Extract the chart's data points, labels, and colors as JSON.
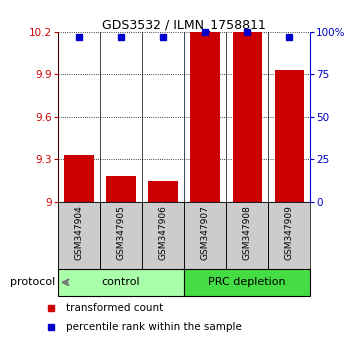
{
  "title": "GDS3532 / ILMN_1758811",
  "samples": [
    "GSM347904",
    "GSM347905",
    "GSM347906",
    "GSM347907",
    "GSM347908",
    "GSM347909"
  ],
  "red_values": [
    9.33,
    9.18,
    9.15,
    10.2,
    10.2,
    9.93
  ],
  "blue_values": [
    97,
    97,
    97,
    100,
    100,
    97
  ],
  "ylim_left": [
    9.0,
    10.2
  ],
  "yticks_left": [
    9.0,
    9.3,
    9.6,
    9.9,
    10.2
  ],
  "ytick_labels_left": [
    "9",
    "9.3",
    "9.6",
    "9.9",
    "10.2"
  ],
  "ylim_right": [
    0,
    100
  ],
  "yticks_right": [
    0,
    25,
    50,
    75,
    100
  ],
  "ytick_labels_right": [
    "0",
    "25",
    "50",
    "75",
    "100%"
  ],
  "groups": [
    {
      "label": "control",
      "start": 0,
      "end": 3,
      "color": "#AAFFAA"
    },
    {
      "label": "PRC depletion",
      "start": 3,
      "end": 6,
      "color": "#44DD44"
    }
  ],
  "protocol_label": "protocol",
  "legend_red": "transformed count",
  "legend_blue": "percentile rank within the sample",
  "bar_color": "#CC0000",
  "dot_color": "#0000CC",
  "background_color": "#ffffff",
  "tick_color_left": "#CC0000",
  "tick_color_right": "#0000CC",
  "group_label_colors": [
    "#AAFFAA",
    "#44DD44"
  ]
}
